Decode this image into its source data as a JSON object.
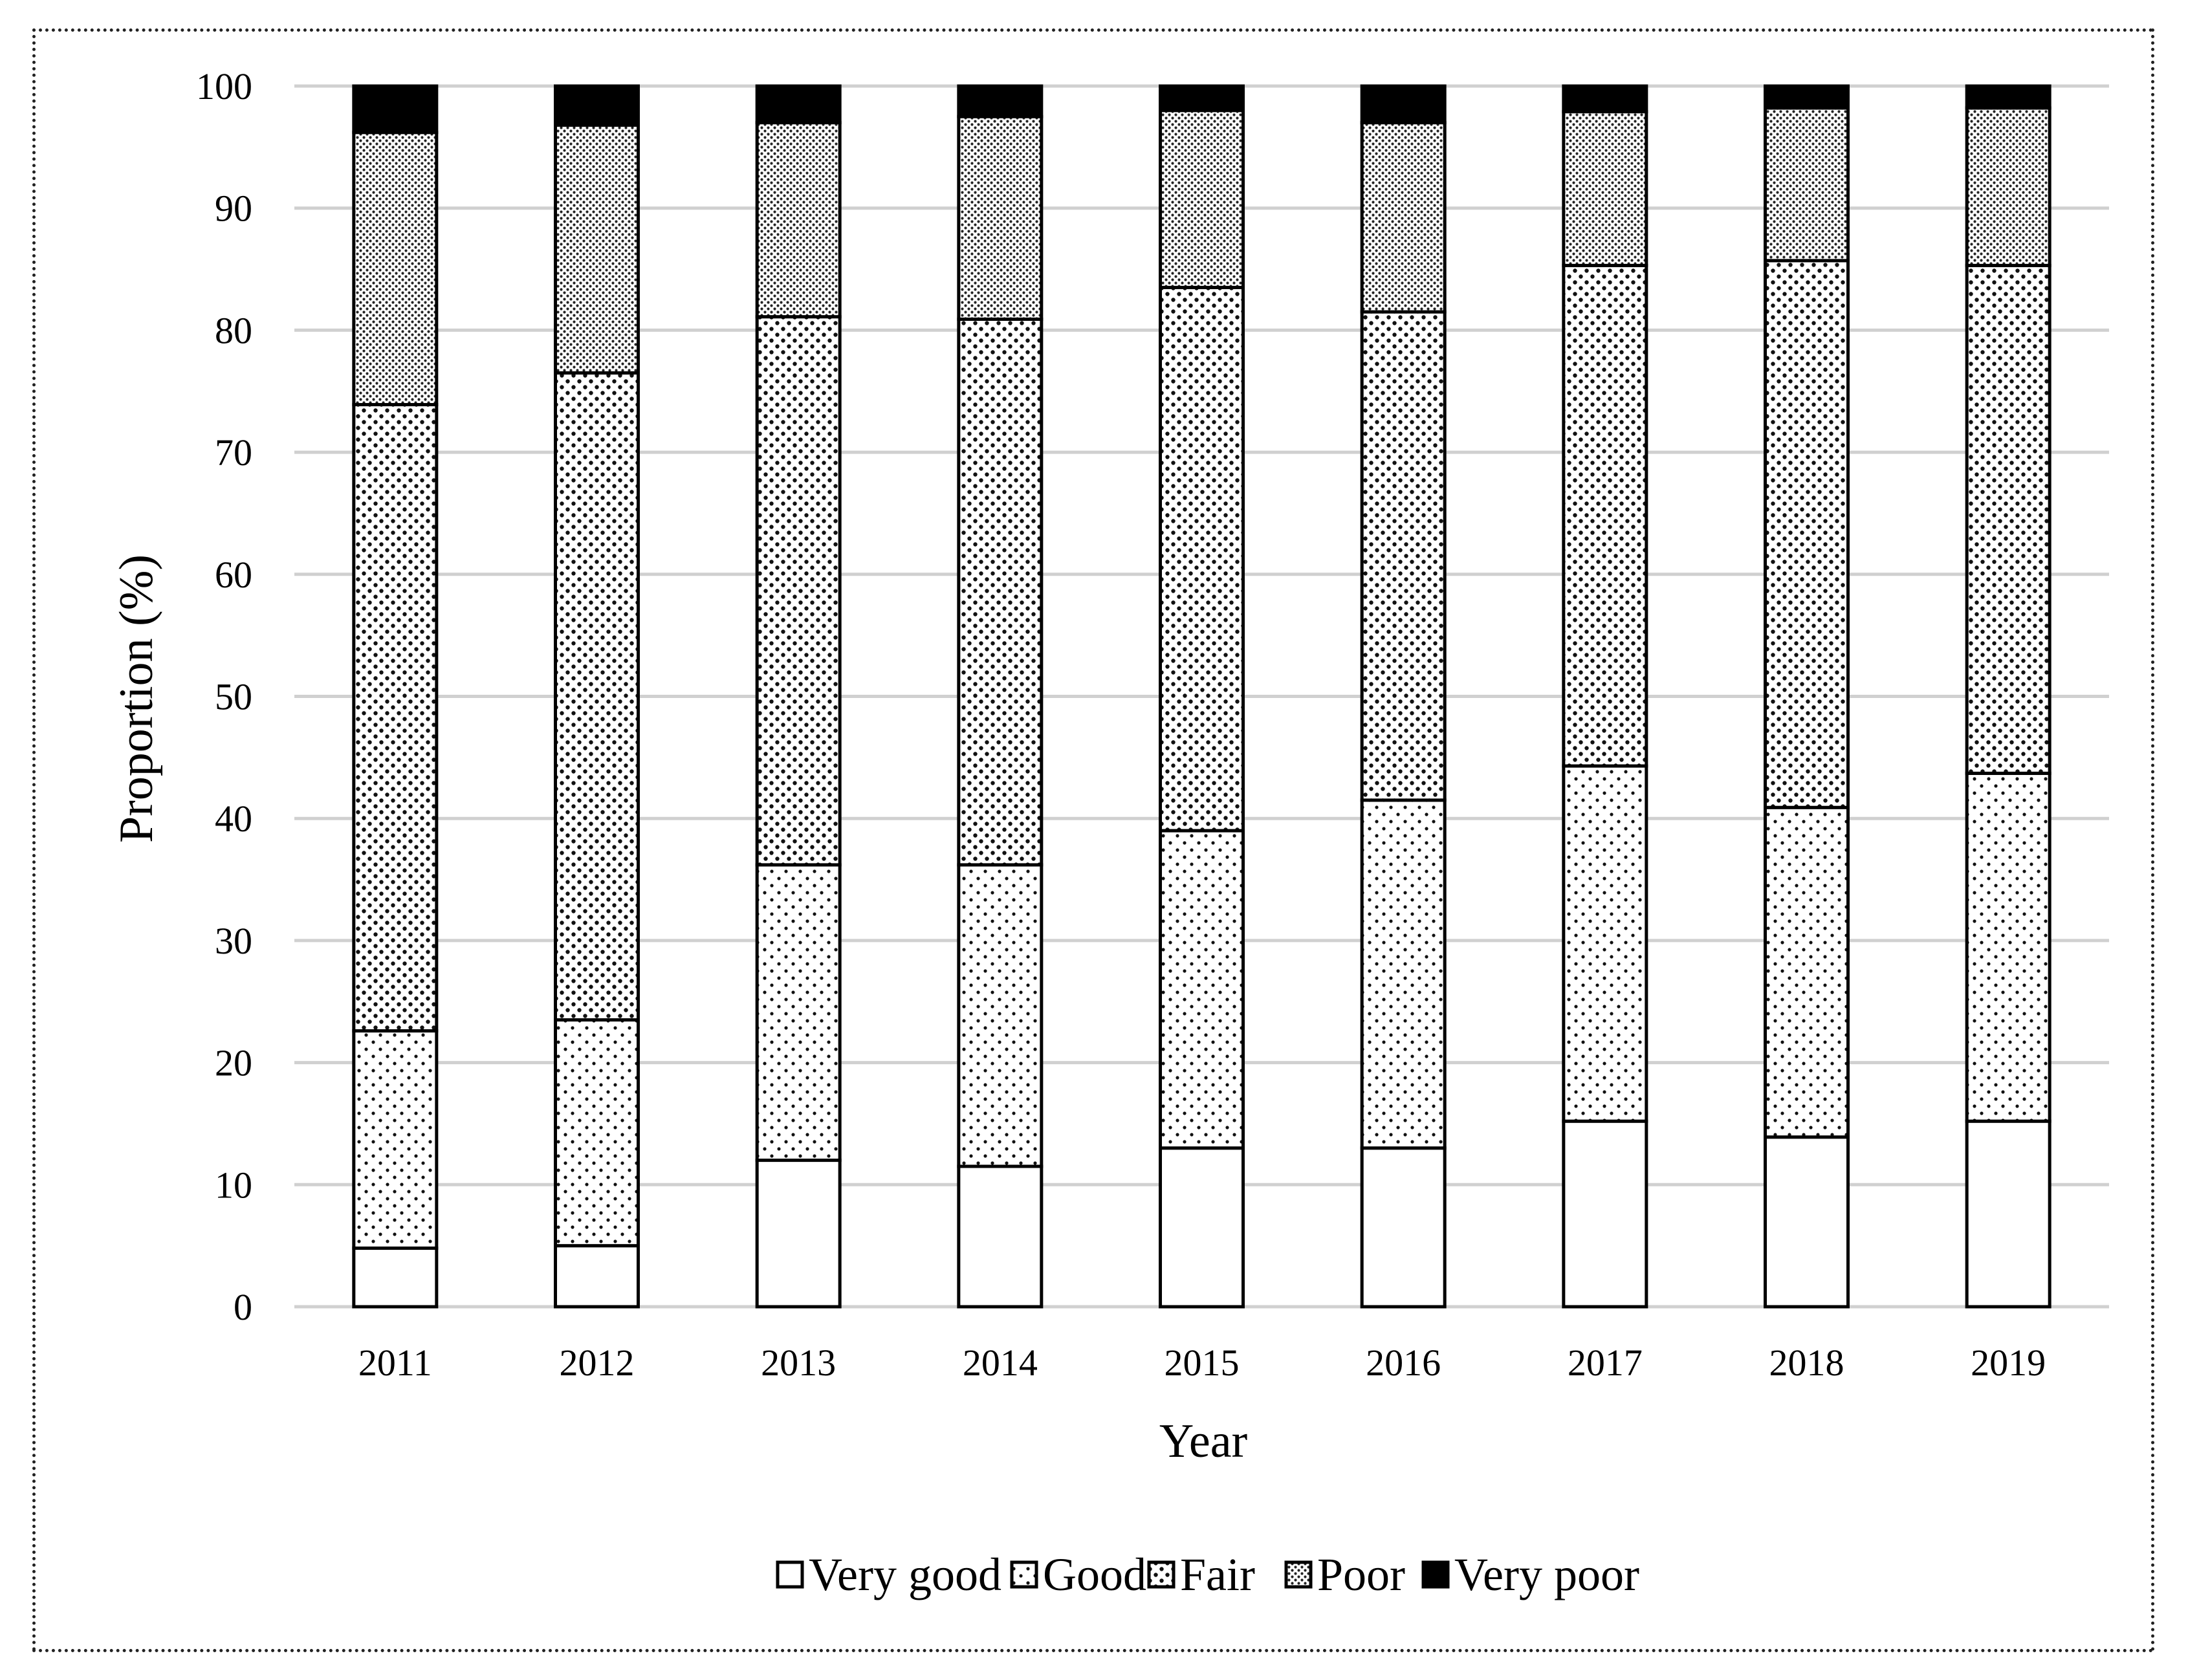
{
  "chart_data": {
    "type": "bar",
    "stacked": true,
    "categories": [
      "2011",
      "2012",
      "2013",
      "2014",
      "2015",
      "2016",
      "2017",
      "2018",
      "2019"
    ],
    "series": [
      {
        "name": "Very good",
        "values": [
          4.8,
          5.0,
          12.0,
          11.5,
          13.0,
          13.0,
          15.2,
          13.9,
          15.2
        ]
      },
      {
        "name": "Good",
        "values": [
          17.8,
          18.5,
          24.2,
          24.7,
          26.0,
          28.5,
          29.1,
          27.0,
          28.5
        ]
      },
      {
        "name": "Fair",
        "values": [
          51.3,
          53.0,
          44.9,
          44.7,
          44.5,
          40.0,
          41.0,
          44.8,
          41.6
        ]
      },
      {
        "name": "Poor",
        "values": [
          22.3,
          20.3,
          15.9,
          16.6,
          14.5,
          15.5,
          12.6,
          12.5,
          12.9
        ]
      },
      {
        "name": "Very poor",
        "values": [
          3.8,
          3.2,
          3.0,
          2.5,
          2.0,
          3.0,
          2.1,
          1.8,
          1.8
        ]
      }
    ],
    "xlabel": "Year",
    "ylabel": "Proportion (%)",
    "ylim": [
      0,
      100
    ],
    "yticks": [
      0,
      10,
      20,
      30,
      40,
      50,
      60,
      70,
      80,
      90,
      100
    ],
    "grid": "horizontal",
    "legend": "bottom"
  }
}
